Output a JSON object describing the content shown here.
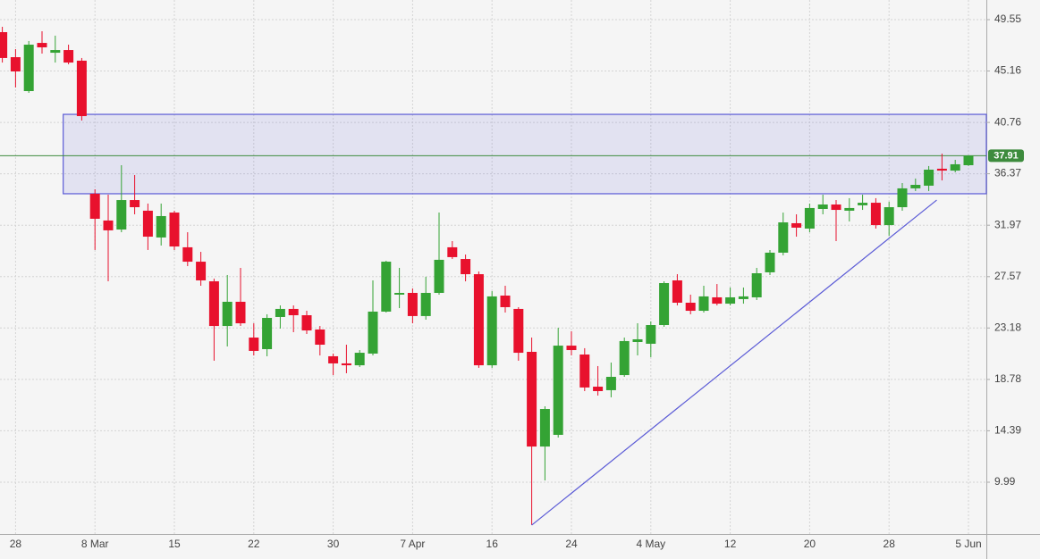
{
  "chart_data": {
    "type": "candlestick",
    "categories": [
      null,
      "28",
      null,
      null,
      null,
      null,
      null,
      "8 Mar",
      null,
      null,
      null,
      null,
      null,
      "15",
      null,
      null,
      null,
      null,
      null,
      "22",
      null,
      null,
      null,
      null,
      null,
      "30",
      null,
      null,
      null,
      null,
      null,
      "7 Apr",
      null,
      null,
      null,
      null,
      null,
      "16",
      null,
      null,
      null,
      null,
      null,
      "24",
      null,
      null,
      null,
      null,
      null,
      "4 May",
      null,
      null,
      null,
      null,
      null,
      "12",
      null,
      null,
      null,
      null,
      null,
      "20",
      null,
      null,
      null,
      null,
      null,
      "28",
      null,
      null,
      null,
      null,
      null,
      "5 Jun"
    ],
    "open": [
      48.48,
      46.34,
      43.44,
      47.56,
      46.72,
      46.95,
      46.04,
      34.66,
      32.37,
      31.6,
      34.12,
      33.21,
      30.92,
      33.05,
      30.08,
      28.85,
      27.17,
      23.35,
      25.42,
      22.36,
      21.37,
      24.12,
      24.81,
      24.27,
      23.05,
      20.76,
      20.15,
      19.99,
      20.99,
      24.58,
      26.03,
      26.18,
      24.2,
      26.18,
      30.08,
      29.08,
      27.78,
      19.99,
      25.95,
      24.81,
      21.14,
      13.04,
      14.04,
      21.67,
      20.91,
      18.16,
      17.86,
      19.15,
      21.98,
      21.83,
      23.43,
      27.25,
      25.34,
      24.65,
      25.8,
      25.26,
      25.65,
      25.8,
      27.94,
      29.62,
      32.14,
      31.68,
      33.36,
      33.74,
      33.21,
      33.67,
      33.89,
      31.98,
      33.51,
      35.12,
      35.35,
      36.8,
      36.64,
      37.1
    ],
    "high": [
      48.94,
      47.03,
      47.72,
      48.56,
      48.18,
      47.41,
      46.27,
      35.04,
      34.58,
      37.1,
      36.26,
      33.82,
      33.82,
      33.21,
      31.37,
      29.69,
      27.4,
      27.71,
      28.32,
      23.58,
      24.35,
      25.11,
      25.11,
      24.65,
      23.35,
      20.99,
      21.75,
      21.29,
      27.25,
      28.93,
      28.32,
      26.56,
      27.56,
      33.05,
      30.61,
      29.46,
      28.01,
      26.33,
      26.79,
      24.96,
      22.36,
      16.48,
      23.2,
      22.9,
      21.45,
      19.92,
      20.22,
      22.36,
      23.58,
      23.74,
      27.17,
      27.78,
      26.03,
      26.79,
      26.94,
      26.64,
      26.64,
      28.32,
      29.85,
      33.05,
      32.9,
      33.82,
      34.58,
      34.12,
      34.28,
      34.58,
      34.28,
      33.98,
      35.57,
      35.96,
      37.03,
      38.09,
      37.56,
      37.95
    ],
    "low": [
      45.88,
      43.75,
      43.29,
      46.65,
      45.88,
      45.73,
      40.92,
      29.85,
      27.17,
      31.37,
      32.9,
      29.85,
      30.23,
      29.85,
      28.47,
      26.79,
      20.38,
      21.6,
      23.35,
      20.83,
      20.76,
      23.13,
      22.82,
      22.67,
      20.83,
      19.15,
      19.31,
      19.84,
      20.83,
      24.5,
      24.88,
      23.58,
      23.89,
      26.03,
      29.08,
      27.17,
      19.77,
      19.77,
      24.5,
      20.38,
      6.32,
      10.14,
      13.81,
      20.83,
      17.78,
      17.4,
      17.25,
      19.0,
      20.83,
      20.68,
      23.28,
      25.11,
      24.35,
      24.5,
      25.11,
      25.11,
      25.26,
      25.57,
      27.71,
      29.39,
      30.99,
      31.37,
      32.9,
      30.61,
      32.29,
      33.28,
      31.68,
      31.07,
      33.21,
      34.89,
      34.89,
      35.8,
      36.49,
      37.03
    ],
    "close": [
      46.27,
      45.12,
      47.41,
      47.18,
      46.95,
      45.88,
      41.3,
      32.52,
      31.53,
      34.12,
      33.51,
      30.99,
      32.75,
      30.15,
      28.85,
      27.25,
      23.35,
      25.42,
      23.58,
      21.22,
      24.04,
      24.81,
      24.27,
      22.97,
      21.75,
      20.15,
      19.99,
      21.06,
      24.58,
      28.85,
      26.18,
      24.2,
      26.18,
      29.01,
      29.24,
      27.78,
      19.99,
      25.88,
      24.96,
      21.06,
      13.04,
      16.25,
      21.67,
      21.29,
      18.09,
      17.78,
      19.0,
      22.06,
      22.21,
      23.43,
      27.02,
      25.34,
      24.65,
      25.88,
      25.26,
      25.8,
      25.88,
      27.86,
      29.62,
      32.21,
      31.76,
      33.44,
      33.74,
      33.28,
      33.44,
      33.89,
      31.98,
      33.51,
      35.12,
      35.42,
      36.72,
      36.64,
      37.18,
      37.91
    ],
    "up_color": "#34a334",
    "down_color": "#e8112d",
    "ylim": [
      5.56,
      51.23
    ],
    "yticks": [
      9.99,
      14.39,
      18.78,
      23.18,
      27.57,
      31.97,
      36.37,
      40.76,
      45.16,
      49.55
    ],
    "grid": true,
    "last_price": 37.91,
    "last_price_color": "#3d8b3d",
    "zone": {
      "from_index": 4.6,
      "low": 34.66,
      "high": 41.45,
      "color": "#5b5bd6"
    },
    "trendline": {
      "x": [
        40,
        70.6
      ],
      "y": [
        6.32,
        34.12
      ],
      "color": "#5b5bd6"
    }
  }
}
